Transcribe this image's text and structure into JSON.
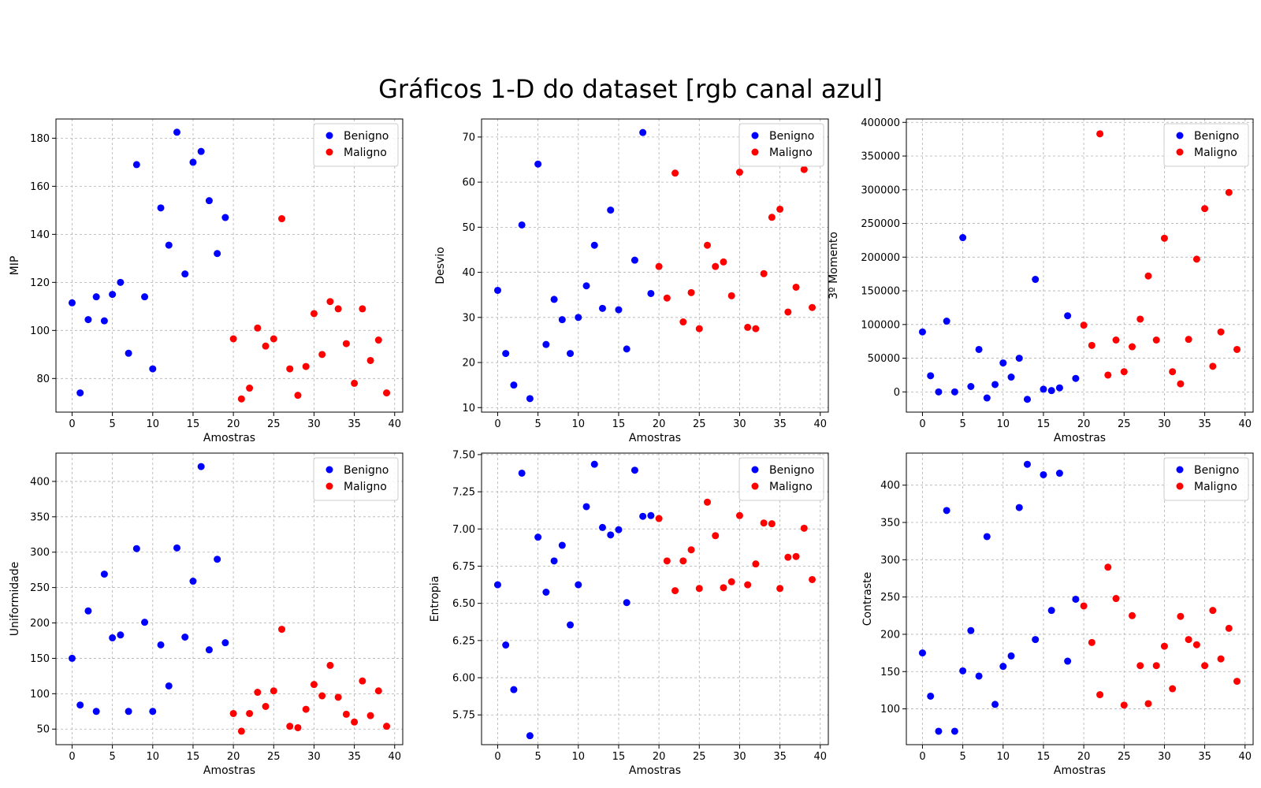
{
  "figure": {
    "title": "Gráficos 1-D do dataset [rgb canal azul]"
  },
  "colors": {
    "benigno": "#0000ff",
    "maligno": "#ff0000"
  },
  "chart_data": [
    {
      "type": "scatter",
      "xlabel": "Amostras",
      "ylabel": "MIP",
      "xlim": [
        -2,
        41
      ],
      "ylim": [
        66,
        188
      ],
      "xticks": [
        0,
        5,
        10,
        15,
        20,
        25,
        30,
        35,
        40
      ],
      "yticks": [
        80,
        100,
        120,
        140,
        160,
        180
      ],
      "grid": true,
      "legend_position": "top-right",
      "series": [
        {
          "name": "Benigno",
          "color": "#0000ff",
          "x": [
            0,
            1,
            2,
            3,
            4,
            5,
            6,
            7,
            8,
            9,
            10,
            11,
            12,
            13,
            14,
            15,
            16,
            17,
            18,
            19
          ],
          "y": [
            111.5,
            74,
            104.5,
            114,
            104,
            115,
            120,
            90.5,
            169,
            114,
            84,
            151,
            135.5,
            182.5,
            123.5,
            170,
            174.5,
            154,
            132,
            147
          ]
        },
        {
          "name": "Maligno",
          "color": "#ff0000",
          "x": [
            20,
            21,
            22,
            23,
            24,
            25,
            26,
            27,
            28,
            29,
            30,
            31,
            32,
            33,
            34,
            35,
            36,
            37,
            38,
            39
          ],
          "y": [
            96.5,
            71.5,
            76,
            101,
            93.5,
            96.5,
            146.5,
            84,
            73,
            85,
            107,
            90,
            112,
            109,
            94.5,
            78,
            109,
            87.5,
            96,
            74
          ]
        }
      ]
    },
    {
      "type": "scatter",
      "xlabel": "Amostras",
      "ylabel": "Desvio",
      "xlim": [
        -2,
        41
      ],
      "ylim": [
        9,
        74
      ],
      "xticks": [
        0,
        5,
        10,
        15,
        20,
        25,
        30,
        35,
        40
      ],
      "yticks": [
        10,
        20,
        30,
        40,
        50,
        60,
        70
      ],
      "grid": true,
      "legend_position": "top-right",
      "series": [
        {
          "name": "Benigno",
          "color": "#0000ff",
          "x": [
            0,
            1,
            2,
            3,
            4,
            5,
            6,
            7,
            8,
            9,
            10,
            11,
            12,
            13,
            14,
            15,
            16,
            17,
            18,
            19
          ],
          "y": [
            36,
            22,
            15,
            50.5,
            12,
            64,
            24,
            34,
            29.5,
            22,
            30,
            37,
            46,
            32,
            53.8,
            31.7,
            23,
            42.7,
            71,
            35.3
          ]
        },
        {
          "name": "Maligno",
          "color": "#ff0000",
          "x": [
            20,
            21,
            22,
            23,
            24,
            25,
            26,
            27,
            28,
            29,
            30,
            31,
            32,
            33,
            34,
            35,
            36,
            37,
            38,
            39
          ],
          "y": [
            41.3,
            34.3,
            62,
            29,
            35.5,
            27.5,
            46,
            41.3,
            42.3,
            34.8,
            62.2,
            27.8,
            27.5,
            39.7,
            52.2,
            54,
            31.2,
            36.7,
            62.8,
            32.2
          ]
        }
      ]
    },
    {
      "type": "scatter",
      "xlabel": "Amostras",
      "ylabel": "3º Momento",
      "xlim": [
        -2,
        41
      ],
      "ylim": [
        -30000,
        405000
      ],
      "xticks": [
        0,
        5,
        10,
        15,
        20,
        25,
        30,
        35,
        40
      ],
      "yticks": [
        0,
        50000,
        100000,
        150000,
        200000,
        250000,
        300000,
        350000,
        400000
      ],
      "grid": true,
      "legend_position": "top-right",
      "series": [
        {
          "name": "Benigno",
          "color": "#0000ff",
          "x": [
            0,
            1,
            2,
            3,
            4,
            5,
            6,
            7,
            8,
            9,
            10,
            11,
            12,
            13,
            14,
            15,
            16,
            17,
            18,
            19
          ],
          "y": [
            89000,
            24000,
            0,
            105000,
            0,
            229000,
            8000,
            63000,
            -9000,
            11000,
            43000,
            22000,
            50000,
            -11000,
            167000,
            4000,
            2000,
            6000,
            113000,
            20000
          ]
        },
        {
          "name": "Maligno",
          "color": "#ff0000",
          "x": [
            20,
            21,
            22,
            23,
            24,
            25,
            26,
            27,
            28,
            29,
            30,
            31,
            32,
            33,
            34,
            35,
            36,
            37,
            38,
            39
          ],
          "y": [
            99000,
            69000,
            383000,
            25000,
            77000,
            30000,
            67000,
            108000,
            172000,
            77000,
            228000,
            30000,
            12000,
            78000,
            197000,
            272000,
            38000,
            89000,
            296000,
            63000
          ]
        }
      ]
    },
    {
      "type": "scatter",
      "xlabel": "Amostras",
      "ylabel": "Uniformidade",
      "xlim": [
        -2,
        41
      ],
      "ylim": [
        28,
        440
      ],
      "xticks": [
        0,
        5,
        10,
        15,
        20,
        25,
        30,
        35,
        40
      ],
      "yticks": [
        50,
        100,
        150,
        200,
        250,
        300,
        350,
        400
      ],
      "grid": true,
      "legend_position": "top-right",
      "series": [
        {
          "name": "Benigno",
          "color": "#0000ff",
          "x": [
            0,
            1,
            2,
            3,
            4,
            5,
            6,
            7,
            8,
            9,
            10,
            11,
            12,
            13,
            14,
            15,
            16,
            17,
            18,
            19
          ],
          "y": [
            150,
            84,
            217,
            75,
            269,
            179,
            183,
            75,
            305,
            201,
            75,
            169,
            111,
            306,
            180,
            259,
            421,
            162,
            290,
            172
          ]
        },
        {
          "name": "Maligno",
          "color": "#ff0000",
          "x": [
            20,
            21,
            22,
            23,
            24,
            25,
            26,
            27,
            28,
            29,
            30,
            31,
            32,
            33,
            34,
            35,
            36,
            37,
            38,
            39
          ],
          "y": [
            72,
            47,
            72,
            102,
            82,
            104,
            191,
            54,
            52,
            78,
            113,
            97,
            140,
            95,
            71,
            60,
            118,
            69,
            104,
            54
          ]
        }
      ]
    },
    {
      "type": "scatter",
      "xlabel": "Amostras",
      "ylabel": "Entropia",
      "xlim": [
        -2,
        41
      ],
      "ylim": [
        5.55,
        7.51
      ],
      "xticks": [
        0,
        5,
        10,
        15,
        20,
        25,
        30,
        35,
        40
      ],
      "yticks": [
        5.75,
        6.0,
        6.25,
        6.5,
        6.75,
        7.0,
        7.25,
        7.5
      ],
      "grid": true,
      "legend_position": "top-right",
      "series": [
        {
          "name": "Benigno",
          "color": "#0000ff",
          "x": [
            0,
            1,
            2,
            3,
            4,
            5,
            6,
            7,
            8,
            9,
            10,
            11,
            12,
            13,
            14,
            15,
            16,
            17,
            18,
            19
          ],
          "y": [
            6.625,
            6.22,
            5.92,
            7.375,
            5.61,
            6.945,
            6.575,
            6.785,
            6.89,
            6.355,
            6.625,
            7.15,
            7.435,
            7.01,
            6.96,
            6.995,
            6.505,
            7.395,
            7.085,
            7.09
          ]
        },
        {
          "name": "Maligno",
          "color": "#ff0000",
          "x": [
            20,
            21,
            22,
            23,
            24,
            25,
            26,
            27,
            28,
            29,
            30,
            31,
            32,
            33,
            34,
            35,
            36,
            37,
            38,
            39
          ],
          "y": [
            7.07,
            6.785,
            6.585,
            6.785,
            6.86,
            6.6,
            7.18,
            6.955,
            6.605,
            6.645,
            7.09,
            6.625,
            6.765,
            7.04,
            7.035,
            6.6,
            6.81,
            6.815,
            7.005,
            6.66
          ]
        }
      ]
    },
    {
      "type": "scatter",
      "xlabel": "Amostras",
      "ylabel": "Contraste",
      "xlim": [
        -2,
        41
      ],
      "ylim": [
        52,
        443
      ],
      "xticks": [
        0,
        5,
        10,
        15,
        20,
        25,
        30,
        35,
        40
      ],
      "yticks": [
        100,
        150,
        200,
        250,
        300,
        350,
        400
      ],
      "grid": true,
      "legend_position": "top-right",
      "series": [
        {
          "name": "Benigno",
          "color": "#0000ff",
          "x": [
            0,
            1,
            2,
            3,
            4,
            5,
            6,
            7,
            8,
            9,
            10,
            11,
            12,
            13,
            14,
            15,
            16,
            17,
            18,
            19
          ],
          "y": [
            175,
            117,
            70,
            366,
            70,
            151,
            205,
            144,
            331,
            106,
            157,
            171,
            370,
            428,
            193,
            414,
            232,
            416,
            164,
            247
          ]
        },
        {
          "name": "Maligno",
          "color": "#ff0000",
          "x": [
            20,
            21,
            22,
            23,
            24,
            25,
            26,
            27,
            28,
            29,
            30,
            31,
            32,
            33,
            34,
            35,
            36,
            37,
            38,
            39
          ],
          "y": [
            238,
            189,
            119,
            290,
            248,
            105,
            225,
            158,
            107,
            158,
            184,
            127,
            224,
            193,
            186,
            158,
            232,
            167,
            208,
            137
          ]
        }
      ]
    }
  ]
}
